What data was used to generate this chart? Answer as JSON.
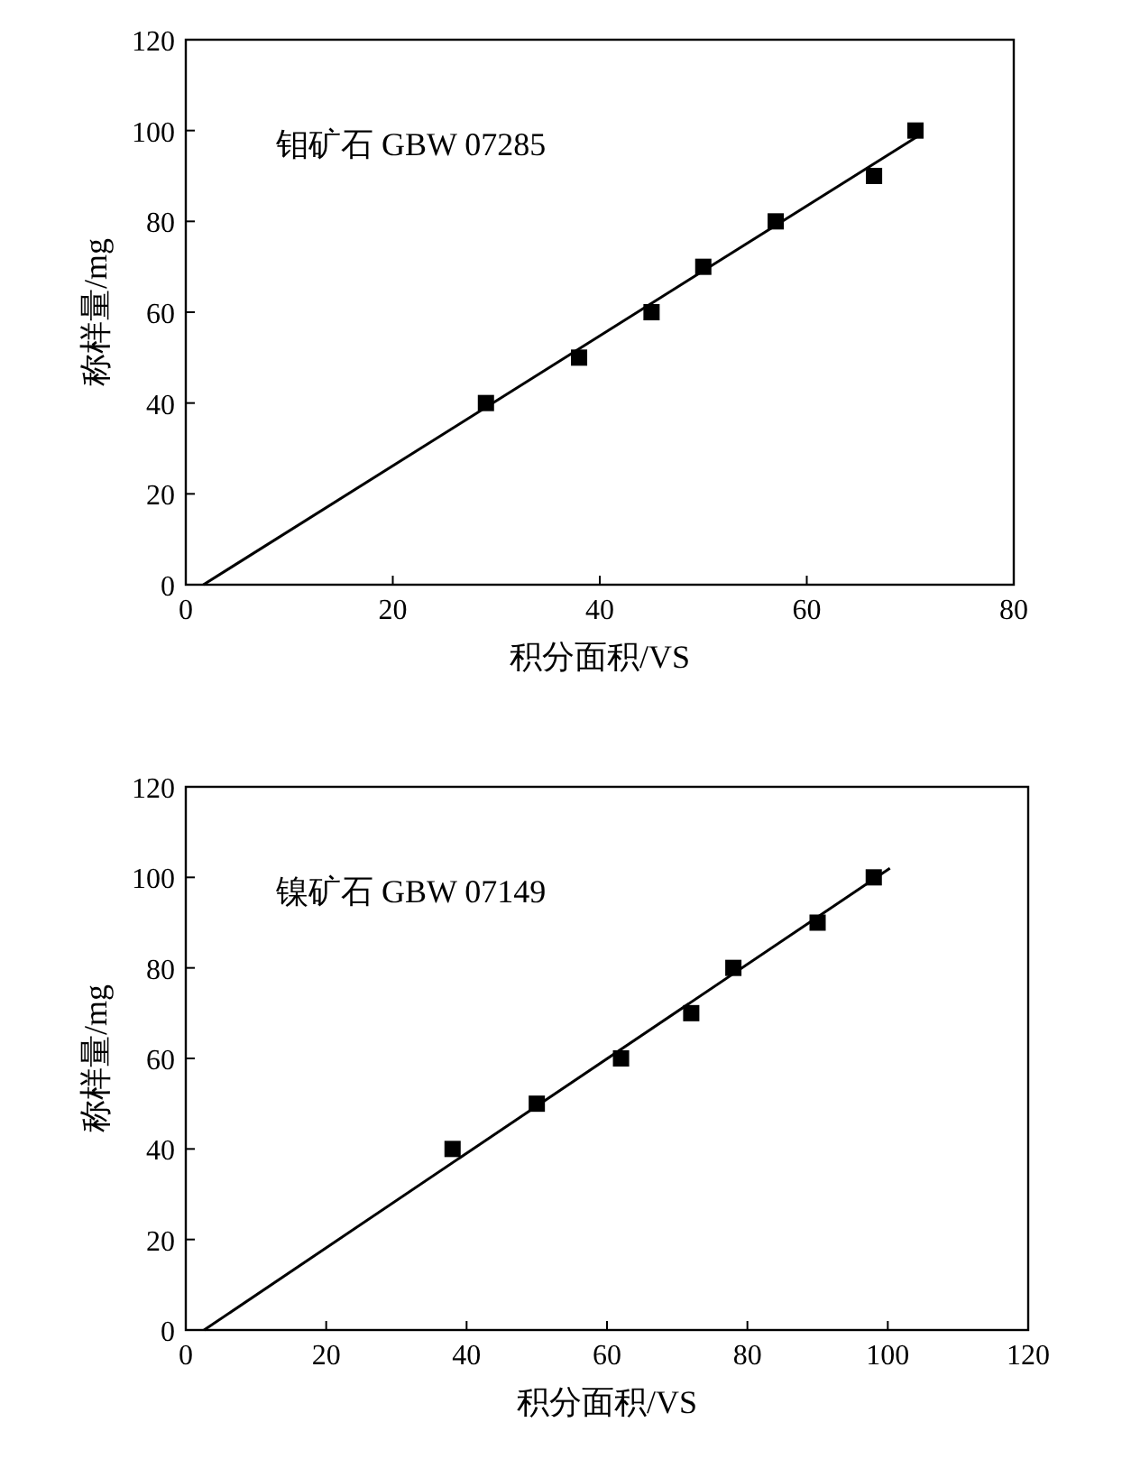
{
  "chart_data": [
    {
      "type": "scatter",
      "xlabel": "积分面积/VS",
      "ylabel": "称样量/mg",
      "annotations": [
        "钼矿石 GBW 07285"
      ],
      "xlim": [
        0,
        80
      ],
      "ylim": [
        0,
        120
      ],
      "xticks": [
        0,
        20,
        40,
        60,
        80
      ],
      "yticks": [
        0,
        20,
        40,
        60,
        80,
        100,
        120
      ],
      "grid": false,
      "series": [
        {
          "marker": "square",
          "color": "#000000",
          "x": [
            29,
            38,
            45,
            50,
            57,
            66.5,
            70.5
          ],
          "values": [
            40,
            50,
            60,
            70,
            80,
            90,
            100
          ]
        },
        {
          "type": "line",
          "marker": "none",
          "line_style": "solid",
          "color": "#000000",
          "x": [
            1.7,
            70.9
          ],
          "values": [
            0,
            99
          ]
        }
      ]
    },
    {
      "type": "scatter",
      "xlabel": "积分面积/VS",
      "ylabel": "称样量/mg",
      "annotations": [
        "镍矿石 GBW 07149"
      ],
      "xlim": [
        0,
        120
      ],
      "ylim": [
        0,
        120
      ],
      "xticks": [
        0,
        20,
        40,
        60,
        80,
        100,
        120
      ],
      "yticks": [
        0,
        20,
        40,
        60,
        80,
        100,
        120
      ],
      "grid": false,
      "series": [
        {
          "marker": "square",
          "color": "#000000",
          "x": [
            38,
            50,
            62,
            72,
            78,
            90,
            98
          ],
          "values": [
            40,
            50,
            60,
            70,
            80,
            90,
            100
          ]
        },
        {
          "type": "line",
          "marker": "none",
          "line_style": "solid",
          "color": "#000000",
          "x": [
            2.6,
            100.3
          ],
          "values": [
            0,
            102
          ]
        }
      ]
    }
  ]
}
